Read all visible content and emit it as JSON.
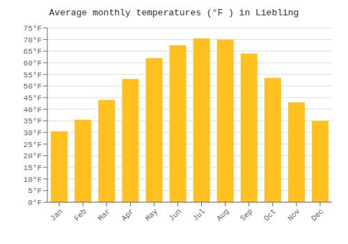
{
  "chart_data": {
    "type": "bar",
    "title": "Average monthly temperatures (°F ) in Liebling",
    "categories": [
      "Jan",
      "Feb",
      "Mar",
      "Apr",
      "May",
      "Jun",
      "Jul",
      "Aug",
      "Sep",
      "Oct",
      "Nov",
      "Dec"
    ],
    "values": [
      30.5,
      35.5,
      44.0,
      53.0,
      62.0,
      67.5,
      70.5,
      70.0,
      64.0,
      53.5,
      43.0,
      35.0
    ],
    "color": "#FFC020",
    "ylim": [
      0,
      75
    ],
    "yticks": [
      {
        "value": 0,
        "label": "0°F"
      },
      {
        "value": 5,
        "label": "5°F"
      },
      {
        "value": 10,
        "label": "10°F"
      },
      {
        "value": 15,
        "label": "15°F"
      },
      {
        "value": 20,
        "label": "20°F"
      },
      {
        "value": 25,
        "label": "25°F"
      },
      {
        "value": 30,
        "label": "30°F"
      },
      {
        "value": 35,
        "label": "35°F"
      },
      {
        "value": 40,
        "label": "40°F"
      },
      {
        "value": 45,
        "label": "45°F"
      },
      {
        "value": 50,
        "label": "50°F"
      },
      {
        "value": 55,
        "label": "55°F"
      },
      {
        "value": 60,
        "label": "60°F"
      },
      {
        "value": 65,
        "label": "65°F"
      },
      {
        "value": 70,
        "label": "70°F"
      },
      {
        "value": 75,
        "label": "75°F"
      }
    ],
    "grid": true
  }
}
